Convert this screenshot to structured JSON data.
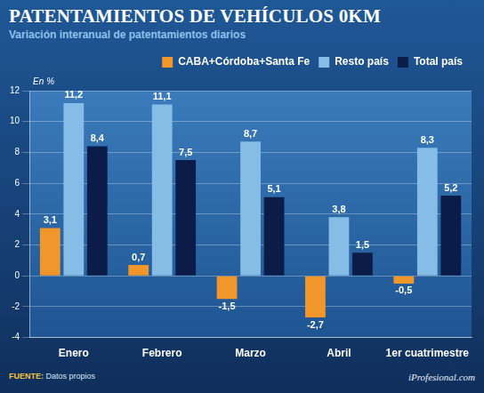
{
  "chart_data": {
    "type": "bar",
    "title": "PATENTAMIENTOS DE VEHÍCULOS 0KM",
    "subtitle": "Variación interanual de patentamientos diarios",
    "y_label": "En %",
    "categories": [
      "Enero",
      "Febrero",
      "Marzo",
      "Abril",
      "1er cuatrimestre"
    ],
    "series": [
      {
        "name": "CABA+Córdoba+Santa Fe",
        "color": "#f0962a",
        "values": [
          3.1,
          0.7,
          -1.5,
          -2.7,
          -0.5
        ],
        "value_labels": [
          "3,1",
          "0,7",
          "-1,5",
          "-2,7",
          "-0,5"
        ]
      },
      {
        "name": "Resto país",
        "color": "#86bde6",
        "values": [
          11.2,
          11.1,
          8.7,
          3.8,
          8.3
        ],
        "value_labels": [
          "11,2",
          "11,1",
          "8,7",
          "3,8",
          "8,3"
        ]
      },
      {
        "name": "Total país",
        "color": "#0b1c48",
        "values": [
          8.4,
          7.5,
          5.1,
          1.5,
          5.2
        ],
        "value_labels": [
          "8,4",
          "7,5",
          "5,1",
          "1,5",
          "5,2"
        ]
      }
    ],
    "ylim": [
      -4,
      12
    ],
    "yticks": [
      -4,
      -2,
      0,
      2,
      4,
      6,
      8,
      10,
      12
    ],
    "grid": true,
    "legend": "top",
    "data_labels": true,
    "source_label": "FUENTE:",
    "source": "Datos propios",
    "credit": "iProfesional.com"
  }
}
